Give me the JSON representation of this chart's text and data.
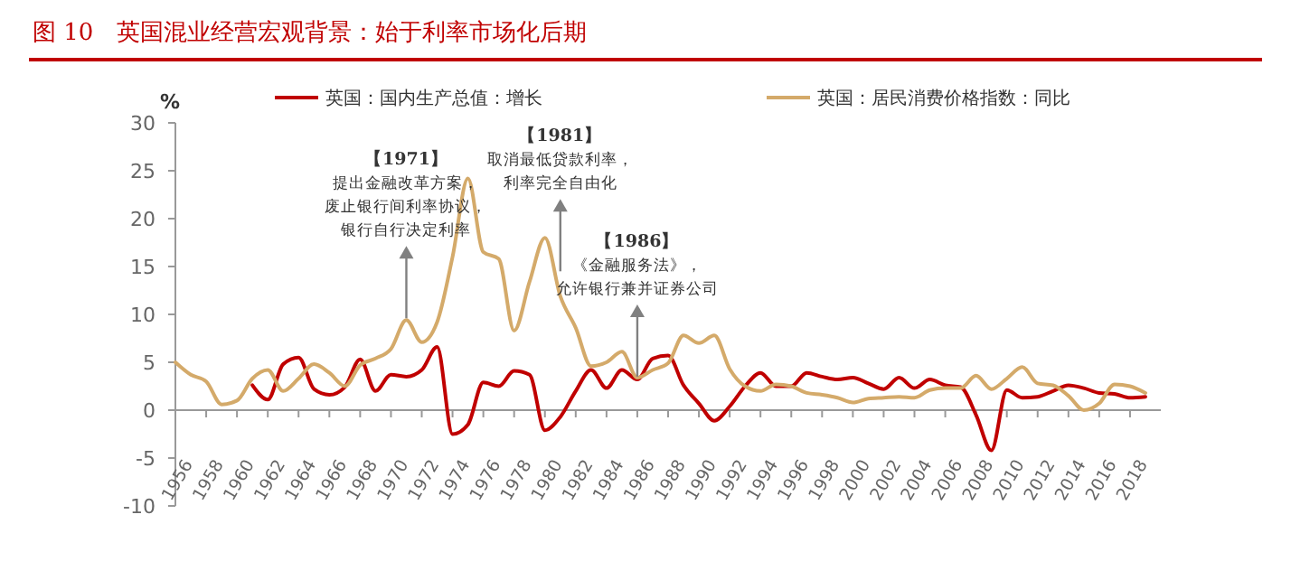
{
  "chart_data": {
    "type": "line",
    "title": "图 10　英国混业经营宏观背景：始于利率市场化后期",
    "ylabel": "%",
    "legend": "top",
    "x": [
      1956,
      1957,
      1958,
      1959,
      1960,
      1961,
      1962,
      1963,
      1964,
      1965,
      1966,
      1967,
      1968,
      1969,
      1970,
      1971,
      1972,
      1973,
      1974,
      1975,
      1976,
      1977,
      1978,
      1979,
      1980,
      1981,
      1982,
      1983,
      1984,
      1985,
      1986,
      1987,
      1988,
      1989,
      1990,
      1991,
      1992,
      1993,
      1994,
      1995,
      1996,
      1997,
      1998,
      1999,
      2000,
      2001,
      2002,
      2003,
      2004,
      2005,
      2006,
      2007,
      2008,
      2009,
      2010,
      2011,
      2012,
      2013,
      2014,
      2015,
      2016,
      2017,
      2018,
      2019
    ],
    "series": [
      {
        "name": "英国：国内生产总值：增长",
        "color": "#c00000",
        "values": [
          null,
          null,
          null,
          null,
          null,
          2.6,
          1.1,
          4.8,
          5.5,
          2.2,
          1.6,
          2.4,
          5.3,
          2.0,
          3.7,
          3.5,
          4.2,
          6.6,
          -2.5,
          -1.5,
          2.9,
          2.5,
          4.1,
          3.7,
          -2.1,
          -0.7,
          2.0,
          4.2,
          2.3,
          4.2,
          3.2,
          5.4,
          5.7,
          2.6,
          0.7,
          -1.1,
          0.4,
          2.5,
          3.9,
          2.5,
          2.5,
          3.9,
          3.5,
          3.2,
          3.4,
          2.8,
          2.2,
          3.4,
          2.3,
          3.2,
          2.6,
          2.4,
          -0.5,
          -4.2,
          2.1,
          1.3,
          1.4,
          2.0,
          2.6,
          2.3,
          1.8,
          1.7,
          1.3,
          1.4
        ]
      },
      {
        "name": "英国：居民消费价格指数：同比",
        "color": "#d4aa6a",
        "values": [
          5.0,
          3.7,
          3.0,
          0.6,
          1.0,
          3.3,
          4.2,
          2.0,
          3.3,
          4.8,
          3.9,
          2.5,
          4.7,
          5.4,
          6.4,
          9.4,
          7.1,
          9.2,
          16.0,
          24.2,
          16.5,
          15.8,
          8.3,
          13.4,
          18.0,
          11.9,
          8.6,
          4.6,
          5.0,
          6.1,
          3.4,
          4.2,
          4.9,
          7.8,
          7.0,
          7.8,
          4.3,
          2.5,
          2.0,
          2.7,
          2.5,
          1.8,
          1.6,
          1.3,
          0.8,
          1.2,
          1.3,
          1.4,
          1.3,
          2.1,
          2.3,
          2.3,
          3.6,
          2.2,
          3.3,
          4.5,
          2.8,
          2.6,
          1.5,
          0.0,
          0.7,
          2.7,
          2.5,
          1.8
        ]
      }
    ],
    "xlim": [
      1956,
      2020
    ],
    "xticks": [
      1956,
      1958,
      1960,
      1962,
      1964,
      1966,
      1968,
      1970,
      1972,
      1974,
      1976,
      1978,
      1980,
      1982,
      1984,
      1986,
      1988,
      1990,
      1992,
      1994,
      1996,
      1998,
      2000,
      2002,
      2004,
      2006,
      2008,
      2010,
      2012,
      2014,
      2016,
      2018
    ],
    "ylim": [
      -10,
      30
    ],
    "yticks": [
      -10,
      -5,
      0,
      5,
      10,
      15,
      20,
      25,
      30
    ],
    "annotations": [
      {
        "text": "【1971】提出金融改革方案，废止银行间利率协议，银行自行决定利率",
        "x": 1971,
        "y": 9.6
      },
      {
        "text": "【1981】取消最低贷款利率，利率完全自由化",
        "x": 1981,
        "y": 14.5
      },
      {
        "text": "【1986】《金融服务法》，允许银行兼并证券公司",
        "x": 1986,
        "y": 3.5
      }
    ]
  }
}
